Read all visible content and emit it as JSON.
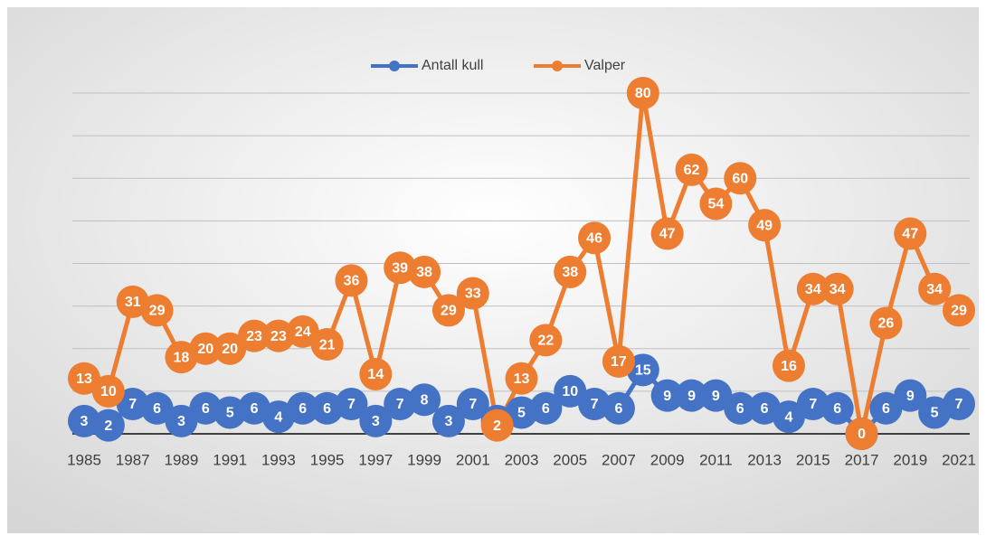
{
  "chart_data": {
    "type": "line",
    "categories": [
      "1985",
      null,
      "1987",
      null,
      "1989",
      null,
      "1991",
      null,
      "1993",
      null,
      "1995",
      null,
      "1997",
      null,
      "1999",
      null,
      "2001",
      null,
      "2003",
      null,
      "2005",
      null,
      "2007",
      null,
      "2009",
      null,
      "2011",
      null,
      "2013",
      null,
      "2015",
      null,
      "2017",
      null,
      "2019",
      null,
      "2021"
    ],
    "series": [
      {
        "name": "Antall kull",
        "color": "#4472c4",
        "values": [
          3,
          2,
          7,
          6,
          3,
          6,
          5,
          6,
          4,
          6,
          6,
          7,
          3,
          7,
          8,
          3,
          7,
          3,
          5,
          6,
          10,
          7,
          6,
          15,
          9,
          9,
          9,
          6,
          6,
          4,
          7,
          6,
          0,
          6,
          9,
          5,
          7
        ]
      },
      {
        "name": "Valper",
        "color": "#ed7d31",
        "values": [
          13,
          10,
          31,
          29,
          18,
          20,
          20,
          23,
          23,
          24,
          21,
          36,
          14,
          39,
          38,
          29,
          33,
          2,
          13,
          22,
          38,
          46,
          17,
          80,
          47,
          62,
          54,
          60,
          49,
          16,
          34,
          34,
          0,
          26,
          47,
          34,
          29
        ]
      }
    ],
    "ylim": [
      0,
      80
    ],
    "yticks": [
      0,
      10,
      20,
      30,
      40,
      50,
      60,
      70,
      80
    ],
    "grid": true,
    "legend": "top"
  }
}
